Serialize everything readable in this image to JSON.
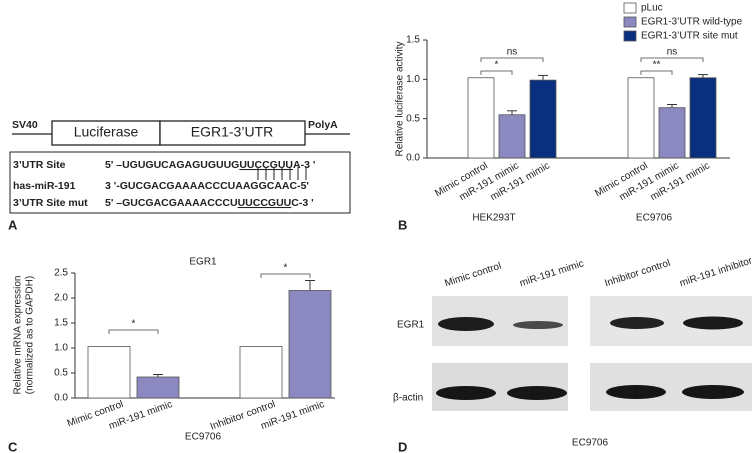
{
  "panel_labels": [
    "A",
    "B",
    "C",
    "D"
  ],
  "diagram": {
    "promoter": "SV40",
    "reporter": "Luciferase",
    "utr": "EGR1-3’UTR",
    "polya": "PolyA",
    "rows": [
      {
        "label": "3’UTR Site",
        "parts": [
          "5' –UGUGUCAGAGUGUUG",
          "UUCCGUU",
          "A-3 '"
        ]
      },
      {
        "label": "has-miR-191",
        "parts": [
          "3 '-GUCGACGAAAACCCU",
          "AAGGCAA",
          "C-5'"
        ]
      },
      {
        "label": "3’UTR Site mut",
        "parts": [
          "5' –GUCGACGAAAACCCU",
          "UUCCGUU",
          "C-3 '"
        ]
      }
    ]
  },
  "chart_data": [
    {
      "type": "grouped_bar",
      "ylabel": "Relative luciferase activity",
      "ylim": [
        0,
        1.5
      ],
      "yticks": [
        {
          "value": 0,
          "label": "0.0"
        },
        0.5,
        {
          "value": 1,
          "label": "1.0"
        },
        1.5
      ],
      "groups": [
        "HEK293T",
        "EC9706"
      ],
      "tick_labels": [
        [
          "Mimic control",
          "miR-191 mimic",
          "miR-191 mimic"
        ],
        [
          "Mimic control",
          "miR-191 mimic",
          "miR-191 mimic"
        ]
      ],
      "series": [
        {
          "name": "pLuc",
          "color": "#ffffff",
          "values": [
            1.02,
            1.02
          ],
          "errors": [
            null,
            null
          ]
        },
        {
          "name": "EGR1-3’UTR wild-type",
          "color": "#8c88c0",
          "values": [
            0.55,
            0.64
          ],
          "errors": [
            0.05,
            0.04
          ]
        },
        {
          "name": "EGR1-3’UTR site mut",
          "color": "#0b2f7f",
          "values": [
            0.99,
            1.02
          ],
          "errors": [
            0.06,
            0.04
          ]
        }
      ],
      "annotations": [
        [
          "ns",
          "*"
        ],
        [
          "ns",
          "**"
        ]
      ]
    },
    {
      "type": "bar",
      "title": "EGR1",
      "ylabel": [
        "Relative mRNA expression",
        "(normalized as to GAPDH)"
      ],
      "xlabel": "EC9706",
      "ylim": [
        0,
        2.5
      ],
      "yticks": [
        {
          "value": 0,
          "label": "0.0"
        },
        0.5,
        {
          "value": 1,
          "label": "1.0"
        },
        1.5,
        {
          "value": 2,
          "label": "2.0"
        },
        2.5
      ],
      "categories": [
        "Mimic control",
        "miR-191 mimic",
        "Inhibitor control",
        "miR-191 mimic"
      ],
      "values": [
        1.03,
        0.42,
        1.03,
        2.15
      ],
      "errors": [
        null,
        0.05,
        null,
        0.2
      ],
      "colors": [
        "#ffffff",
        "#8c88c0",
        "#ffffff",
        "#8c88c0"
      ],
      "annotations": [
        "*",
        "*"
      ]
    }
  ],
  "blot": {
    "lanes": [
      "Mimic control",
      "miR-191 mimic",
      "Inhibitor control",
      "miR-191 inhibitor"
    ],
    "rows": [
      "EGR1",
      "β-actin"
    ],
    "caption": "EC9706"
  }
}
